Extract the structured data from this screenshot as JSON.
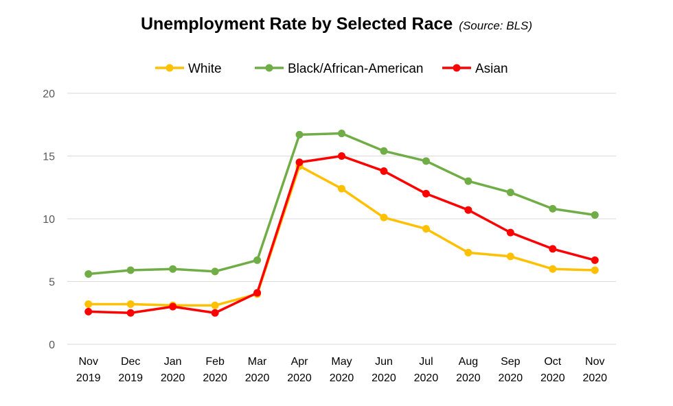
{
  "chart_data": {
    "type": "line",
    "title": "Unemployment Rate by Selected Race",
    "subtitle": "(Source: BLS)",
    "xlabel": "",
    "ylabel": "",
    "categories": [
      [
        "Nov",
        "2019"
      ],
      [
        "Dec",
        "2019"
      ],
      [
        "Jan",
        "2020"
      ],
      [
        "Feb",
        "2020"
      ],
      [
        "Mar",
        "2020"
      ],
      [
        "Apr",
        "2020"
      ],
      [
        "May",
        "2020"
      ],
      [
        "Jun",
        "2020"
      ],
      [
        "Jul",
        "2020"
      ],
      [
        "Aug",
        "2020"
      ],
      [
        "Sep",
        "2020"
      ],
      [
        "Oct",
        "2020"
      ],
      [
        "Nov",
        "2020"
      ]
    ],
    "ylim": [
      0,
      20
    ],
    "yticks": [
      0,
      5,
      10,
      15,
      20
    ],
    "grid": true,
    "legend_position": "top-center",
    "series": [
      {
        "name": "White",
        "color": "#FFC000",
        "values": [
          3.2,
          3.2,
          3.1,
          3.1,
          4.0,
          14.2,
          12.4,
          10.1,
          9.2,
          7.3,
          7.0,
          6.0,
          5.9
        ]
      },
      {
        "name": "Black/African-American",
        "color": "#70AD47",
        "values": [
          5.6,
          5.9,
          6.0,
          5.8,
          6.7,
          16.7,
          16.8,
          15.4,
          14.6,
          13.0,
          12.1,
          10.8,
          10.3
        ]
      },
      {
        "name": "Asian",
        "color": "#FF0000",
        "values": [
          2.6,
          2.5,
          3.0,
          2.5,
          4.1,
          14.5,
          15.0,
          13.8,
          12.0,
          10.7,
          8.9,
          7.6,
          6.7
        ]
      }
    ]
  }
}
